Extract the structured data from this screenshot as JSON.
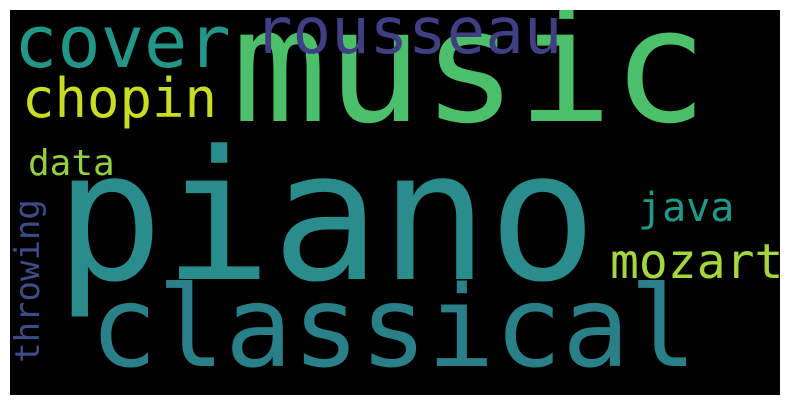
{
  "words": [
    {
      "text": "music",
      "color": "#4cbf6b"
    },
    {
      "text": "piano",
      "color": "#2a8d8c"
    },
    {
      "text": "classical",
      "color": "#2a8089"
    },
    {
      "text": "cover",
      "color": "#23968a"
    },
    {
      "text": "rousseau",
      "color": "#403f84"
    },
    {
      "text": "chopin",
      "color": "#c8dd23"
    },
    {
      "text": "data",
      "color": "#95cf3e"
    },
    {
      "text": "java",
      "color": "#1f9a8a"
    },
    {
      "text": "mozart",
      "color": "#a6d63d"
    },
    {
      "text": "throwing",
      "color": "#3e4d89"
    }
  ]
}
